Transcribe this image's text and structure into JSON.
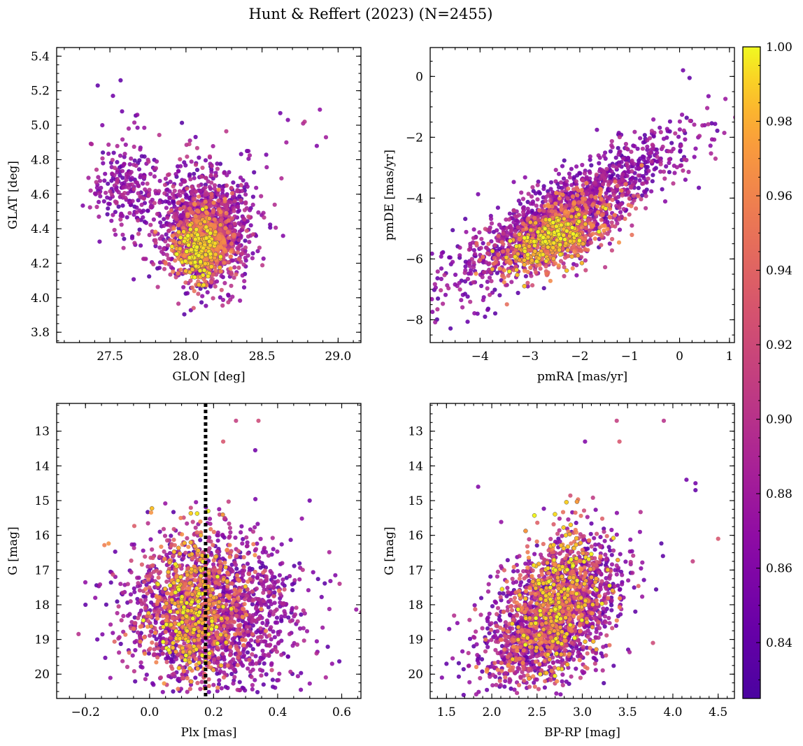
{
  "figure": {
    "title": "Hunt & Reffert (2023) (N=2455)"
  },
  "colorbar": {
    "cmap": "plasma",
    "range": [
      0.825,
      1.0
    ],
    "ticks": [
      0.84,
      0.86,
      0.88,
      0.9,
      0.92,
      0.94,
      0.96,
      0.98,
      1.0
    ],
    "tick_labels": [
      "0.84",
      "0.86",
      "0.88",
      "0.90",
      "0.92",
      "0.94",
      "0.96",
      "0.98",
      "1.00"
    ]
  },
  "chart_data": [
    {
      "type": "scatter",
      "panel": "top-left",
      "xlabel": "GLON [deg]",
      "ylabel": "GLAT [deg]",
      "xlim": [
        27.15,
        29.15
      ],
      "ylim": [
        3.74,
        5.45
      ],
      "y_inverted": false,
      "xticks": [
        27.5,
        28.0,
        28.5,
        29.0
      ],
      "xtick_labels": [
        "27.5",
        "28.0",
        "28.5",
        "29.0"
      ],
      "xminor": 0.1,
      "yticks": [
        3.8,
        4.0,
        4.2,
        4.4,
        4.6,
        4.8,
        5.0,
        5.2,
        5.4
      ],
      "ytick_labels": [
        "3.8",
        "4.0",
        "4.2",
        "4.4",
        "4.6",
        "4.8",
        "5.0",
        "5.2",
        "5.4"
      ],
      "yminor": 0.05,
      "clusters": [
        {
          "mx": 27.62,
          "my": 4.65,
          "sx": 0.12,
          "sy": 0.14,
          "n": 240,
          "prob": [
            0.83,
            0.9
          ]
        },
        {
          "mx": 28.13,
          "my": 4.42,
          "sx": 0.16,
          "sy": 0.17,
          "n": 1100,
          "prob": [
            0.83,
            0.91
          ]
        },
        {
          "mx": 28.12,
          "my": 4.33,
          "sx": 0.1,
          "sy": 0.11,
          "n": 600,
          "prob": [
            0.9,
            0.97
          ]
        },
        {
          "mx": 28.08,
          "my": 4.27,
          "sx": 0.07,
          "sy": 0.08,
          "n": 180,
          "prob": [
            0.97,
            1.0
          ]
        }
      ],
      "outliers": [
        {
          "x": 27.42,
          "y": 5.23,
          "c": 0.84
        },
        {
          "x": 27.52,
          "y": 5.17,
          "c": 0.85
        },
        {
          "x": 27.57,
          "y": 5.26,
          "c": 0.84
        },
        {
          "x": 27.45,
          "y": 5.0,
          "c": 0.86
        },
        {
          "x": 27.68,
          "y": 5.06,
          "c": 0.87
        },
        {
          "x": 27.58,
          "y": 5.08,
          "c": 0.85
        },
        {
          "x": 28.62,
          "y": 5.07,
          "c": 0.85
        },
        {
          "x": 28.67,
          "y": 5.03,
          "c": 0.86
        },
        {
          "x": 28.66,
          "y": 4.9,
          "c": 0.88
        },
        {
          "x": 28.77,
          "y": 5.01,
          "c": 0.89
        },
        {
          "x": 28.78,
          "y": 5.02,
          "c": 0.9
        },
        {
          "x": 28.88,
          "y": 5.09,
          "c": 0.87
        },
        {
          "x": 28.86,
          "y": 4.88,
          "c": 0.86
        },
        {
          "x": 28.92,
          "y": 4.93,
          "c": 0.88
        },
        {
          "x": 28.41,
          "y": 4.85,
          "c": 0.86
        },
        {
          "x": 27.38,
          "y": 4.89,
          "c": 0.89
        },
        {
          "x": 28.05,
          "y": 3.94,
          "c": 0.93
        }
      ]
    },
    {
      "type": "scatter",
      "panel": "top-right",
      "xlabel": "pmRA [mas/yr]",
      "ylabel": "pmDE [mas/yr]",
      "xlim": [
        -5.0,
        1.1
      ],
      "ylim": [
        -8.75,
        0.95
      ],
      "y_inverted": false,
      "xticks": [
        -4,
        -3,
        -2,
        -1,
        0,
        1
      ],
      "xtick_labels": [
        "−4",
        "−3",
        "−2",
        "−1",
        "0",
        "1"
      ],
      "xminor": 0.25,
      "yticks": [
        -8,
        -6,
        -4,
        -2,
        0
      ],
      "ytick_labels": [
        "−8",
        "−6",
        "−4",
        "−2",
        "0"
      ],
      "yminor": 0.5,
      "clusters": [
        {
          "mx": -2.3,
          "my": -4.5,
          "sx": 1.15,
          "sy": 1.25,
          "rho": 0.85,
          "n": 1400,
          "prob": [
            0.83,
            0.9
          ]
        },
        {
          "mx": -2.4,
          "my": -5.1,
          "sx": 0.6,
          "sy": 0.7,
          "rho": 0.6,
          "n": 650,
          "prob": [
            0.9,
            0.97
          ]
        },
        {
          "mx": -2.6,
          "my": -5.4,
          "sx": 0.38,
          "sy": 0.45,
          "rho": 0.5,
          "n": 200,
          "prob": [
            0.97,
            1.0
          ]
        }
      ],
      "outliers": [
        {
          "x": 0.07,
          "y": 0.2,
          "c": 0.85
        },
        {
          "x": 0.2,
          "y": -0.05,
          "c": 0.84
        },
        {
          "x": 0.58,
          "y": -0.65,
          "c": 0.86
        },
        {
          "x": -4.55,
          "y": -6.1,
          "c": 0.87
        },
        {
          "x": -3.9,
          "y": -7.9,
          "c": 0.84
        },
        {
          "x": -4.05,
          "y": -7.8,
          "c": 0.85
        },
        {
          "x": -4.3,
          "y": -7.15,
          "c": 0.84
        }
      ]
    },
    {
      "type": "scatter",
      "panel": "bottom-left",
      "xlabel": "Plx [mas]",
      "ylabel": "G [mag]",
      "xlim": [
        -0.29,
        0.66
      ],
      "ylim": [
        20.7,
        12.2
      ],
      "y_inverted": true,
      "xticks": [
        -0.2,
        0.0,
        0.2,
        0.4,
        0.6
      ],
      "xtick_labels": [
        "−0.2",
        "0.0",
        "0.2",
        "0.4",
        "0.6"
      ],
      "xminor": 0.05,
      "yticks": [
        13,
        14,
        15,
        16,
        17,
        18,
        19,
        20
      ],
      "ytick_labels": [
        "13",
        "14",
        "15",
        "16",
        "17",
        "18",
        "19",
        "20"
      ],
      "yminor": 0.25,
      "reference_line": {
        "x": 0.175,
        "style": "dotted",
        "color": "#000000"
      },
      "clusters": [
        {
          "mx": 0.2,
          "my": 18.3,
          "sx": 0.14,
          "sy": 1.15,
          "n": 1500,
          "prob": [
            0.83,
            0.9
          ],
          "yclip": [
            14.4,
            20.6
          ]
        },
        {
          "mx": 0.15,
          "my": 18.0,
          "sx": 0.09,
          "sy": 1.1,
          "n": 650,
          "prob": [
            0.9,
            0.97
          ],
          "yclip": [
            14.8,
            20.5
          ]
        },
        {
          "mx": 0.13,
          "my": 18.1,
          "sx": 0.06,
          "sy": 1.05,
          "n": 200,
          "prob": [
            0.97,
            1.0
          ],
          "yclip": [
            15.0,
            20.3
          ]
        }
      ],
      "outliers": [
        {
          "x": 0.27,
          "y": 12.7,
          "c": 0.91
        },
        {
          "x": 0.34,
          "y": 12.7,
          "c": 0.92
        },
        {
          "x": 0.23,
          "y": 13.3,
          "c": 0.93
        },
        {
          "x": 0.33,
          "y": 13.55,
          "c": 0.85
        },
        {
          "x": -0.2,
          "y": 18.0,
          "c": 0.84
        },
        {
          "x": 0.5,
          "y": 15.0,
          "c": 0.85
        },
        {
          "x": 0.58,
          "y": 17.15,
          "c": 0.86
        },
        {
          "x": 0.57,
          "y": 19.7,
          "c": 0.87
        }
      ]
    },
    {
      "type": "scatter",
      "panel": "bottom-right",
      "xlabel": "BP-RP [mag]",
      "ylabel": "G [mag]",
      "xlim": [
        1.32,
        4.68
      ],
      "ylim": [
        20.7,
        12.2
      ],
      "y_inverted": true,
      "xticks": [
        1.5,
        2.0,
        2.5,
        3.0,
        3.5,
        4.0,
        4.5
      ],
      "xtick_labels": [
        "1.5",
        "2.0",
        "2.5",
        "3.0",
        "3.5",
        "4.0",
        "4.5"
      ],
      "xminor": 0.1,
      "yticks": [
        13,
        14,
        15,
        16,
        17,
        18,
        19,
        20
      ],
      "ytick_labels": [
        "13",
        "14",
        "15",
        "16",
        "17",
        "18",
        "19",
        "20"
      ],
      "yminor": 0.25,
      "clusters": [
        {
          "mx": 2.7,
          "my": 18.3,
          "sx": 0.38,
          "sy": 1.05,
          "rho": -0.45,
          "n": 1500,
          "prob": [
            0.83,
            0.9
          ],
          "yclip": [
            14.5,
            20.6
          ]
        },
        {
          "mx": 2.65,
          "my": 18.1,
          "sx": 0.3,
          "sy": 1.1,
          "rho": -0.4,
          "n": 650,
          "prob": [
            0.9,
            0.97
          ],
          "yclip": [
            14.7,
            20.5
          ]
        },
        {
          "mx": 2.7,
          "my": 17.9,
          "sx": 0.25,
          "sy": 1.05,
          "rho": -0.35,
          "n": 200,
          "prob": [
            0.97,
            1.0
          ],
          "yclip": [
            15.0,
            20.2
          ]
        }
      ],
      "outliers": [
        {
          "x": 3.38,
          "y": 12.7,
          "c": 0.91
        },
        {
          "x": 3.9,
          "y": 12.7,
          "c": 0.9
        },
        {
          "x": 3.03,
          "y": 13.3,
          "c": 0.86
        },
        {
          "x": 3.41,
          "y": 13.3,
          "c": 0.93
        },
        {
          "x": 4.5,
          "y": 16.1,
          "c": 0.93
        },
        {
          "x": 4.25,
          "y": 14.5,
          "c": 0.85
        },
        {
          "x": 4.25,
          "y": 14.7,
          "c": 0.84
        },
        {
          "x": 4.15,
          "y": 14.4,
          "c": 0.85
        },
        {
          "x": 1.45,
          "y": 20.1,
          "c": 0.86
        },
        {
          "x": 1.5,
          "y": 19.7,
          "c": 0.84
        },
        {
          "x": 1.53,
          "y": 18.7,
          "c": 0.85
        },
        {
          "x": 1.85,
          "y": 14.6,
          "c": 0.86
        },
        {
          "x": 4.22,
          "y": 16.75,
          "c": 0.91
        },
        {
          "x": 3.78,
          "y": 19.1,
          "c": 0.92
        }
      ]
    }
  ]
}
